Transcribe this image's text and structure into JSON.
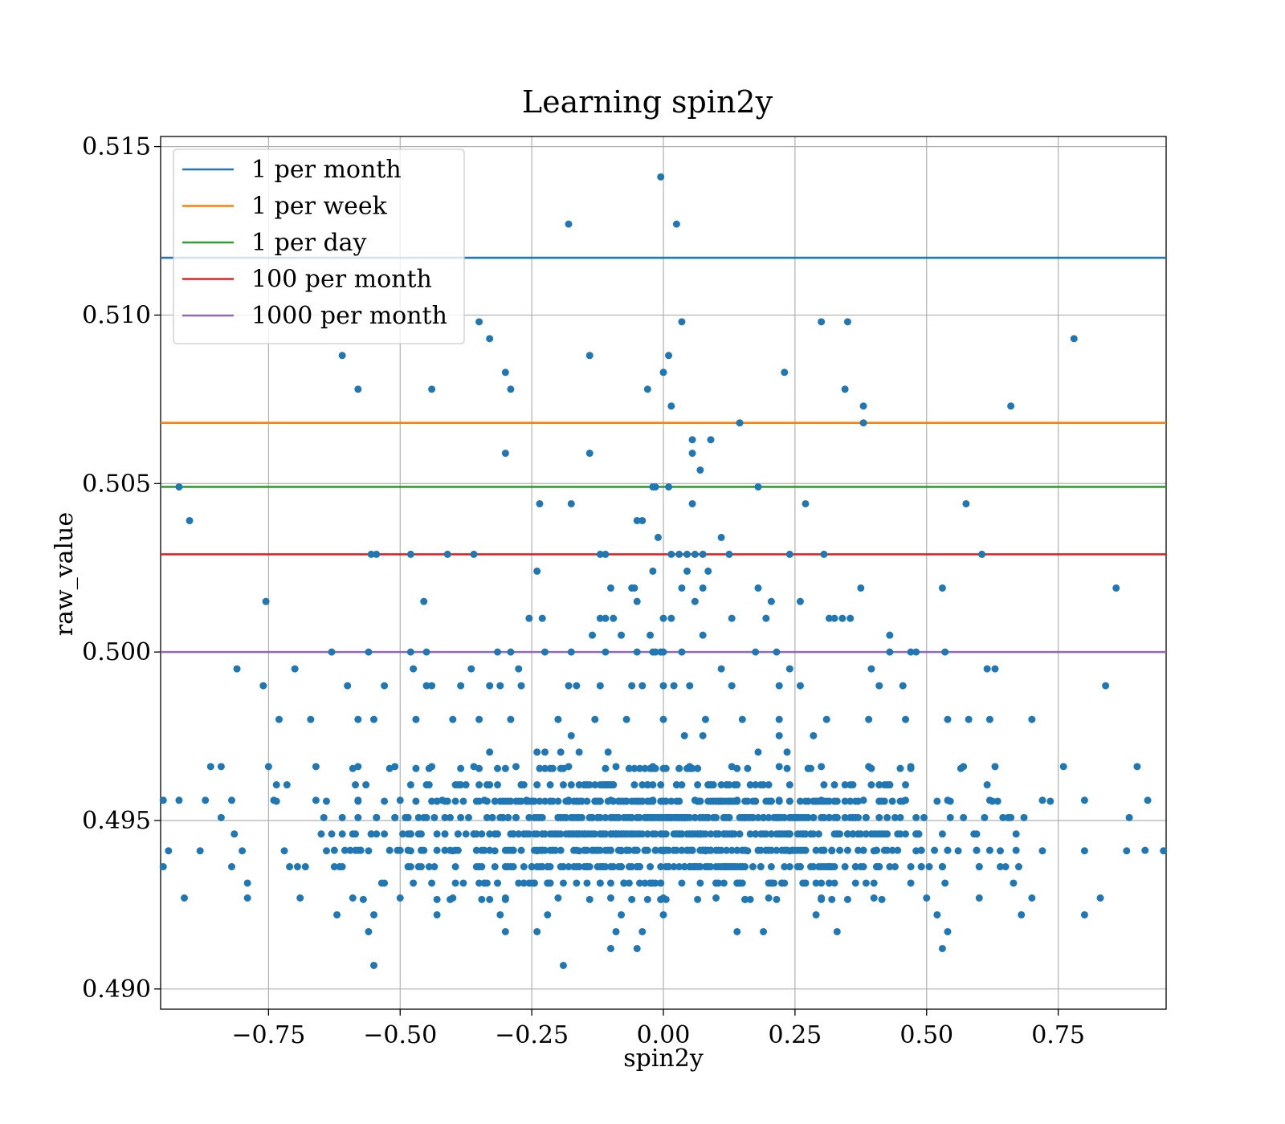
{
  "chart_data": {
    "type": "scatter",
    "title": "Learning spin2y",
    "xlabel": "spin2y",
    "ylabel": "raw_value",
    "xlim": [
      -0.955,
      0.955
    ],
    "ylim": [
      0.4894,
      0.5153
    ],
    "xticks": [
      -0.75,
      -0.5,
      -0.25,
      0.0,
      0.25,
      0.5,
      0.75
    ],
    "xtick_labels": [
      "−0.75",
      "−0.50",
      "−0.25",
      "0.00",
      "0.25",
      "0.50",
      "0.75"
    ],
    "yticks": [
      0.49,
      0.495,
      0.5,
      0.505,
      0.51,
      0.515
    ],
    "ytick_labels": [
      "0.490",
      "0.495",
      "0.500",
      "0.505",
      "0.510",
      "0.515"
    ],
    "grid": true,
    "legend_position": "upper-left",
    "point_color": "#1f77b4",
    "reference_lines": [
      {
        "label": "1 per month",
        "y": 0.5117,
        "color": "#1f77b4"
      },
      {
        "label": "1 per week",
        "y": 0.5068,
        "color": "#ff7f0e"
      },
      {
        "label": "1 per day",
        "y": 0.5049,
        "color": "#2ca02c"
      },
      {
        "label": "100 per month",
        "y": 0.5029,
        "color": "#d62728"
      },
      {
        "label": "1000 per month",
        "y": 0.5,
        "color": "#9467bd"
      }
    ],
    "points": [
      [
        -0.005,
        0.5141
      ],
      [
        -0.18,
        0.5127
      ],
      [
        0.025,
        0.5127
      ],
      [
        -0.35,
        0.5098
      ],
      [
        -0.33,
        0.5093
      ],
      [
        0.035,
        0.5098
      ],
      [
        0.3,
        0.5098
      ],
      [
        0.35,
        0.5098
      ],
      [
        0.78,
        0.5093
      ],
      [
        -0.61,
        0.5088
      ],
      [
        -0.14,
        0.5088
      ],
      [
        0.01,
        0.5088
      ],
      [
        -0.58,
        0.5078
      ],
      [
        -0.44,
        0.5078
      ],
      [
        -0.3,
        0.5083
      ],
      [
        -0.29,
        0.5078
      ],
      [
        -0.03,
        0.5078
      ],
      [
        0.0,
        0.5083
      ],
      [
        0.23,
        0.5083
      ],
      [
        0.345,
        0.5078
      ],
      [
        0.015,
        0.5073
      ],
      [
        0.38,
        0.5073
      ],
      [
        0.66,
        0.5073
      ],
      [
        0.145,
        0.5068
      ],
      [
        0.38,
        0.5068
      ],
      [
        0.055,
        0.5063
      ],
      [
        0.09,
        0.5063
      ],
      [
        -0.3,
        0.5059
      ],
      [
        -0.14,
        0.5059
      ],
      [
        0.055,
        0.5059
      ],
      [
        0.07,
        0.5054
      ],
      [
        -0.92,
        0.5049
      ],
      [
        -0.02,
        0.5049
      ],
      [
        -0.015,
        0.5049
      ],
      [
        0.01,
        0.5049
      ],
      [
        0.18,
        0.5049
      ],
      [
        -0.235,
        0.5044
      ],
      [
        -0.175,
        0.5044
      ],
      [
        0.055,
        0.5044
      ],
      [
        0.27,
        0.5044
      ],
      [
        0.575,
        0.5044
      ],
      [
        -0.9,
        0.5039
      ],
      [
        -0.05,
        0.5039
      ],
      [
        -0.04,
        0.5039
      ],
      [
        0.11,
        0.5034
      ],
      [
        -0.01,
        0.5034
      ],
      [
        -0.555,
        0.5029
      ],
      [
        -0.545,
        0.5029
      ],
      [
        -0.48,
        0.5029
      ],
      [
        -0.41,
        0.5029
      ],
      [
        -0.36,
        0.5029
      ],
      [
        -0.12,
        0.5029
      ],
      [
        -0.11,
        0.5029
      ],
      [
        0.015,
        0.5029
      ],
      [
        0.03,
        0.5029
      ],
      [
        0.045,
        0.5029
      ],
      [
        0.06,
        0.5029
      ],
      [
        0.075,
        0.5029
      ],
      [
        0.125,
        0.5029
      ],
      [
        0.24,
        0.5029
      ],
      [
        0.305,
        0.5029
      ],
      [
        0.605,
        0.5029
      ],
      [
        -0.24,
        0.5024
      ],
      [
        -0.02,
        0.5024
      ],
      [
        0.045,
        0.5024
      ],
      [
        0.085,
        0.5024
      ],
      [
        -0.1,
        0.5019
      ],
      [
        -0.06,
        0.5019
      ],
      [
        -0.055,
        0.5019
      ],
      [
        0.035,
        0.5019
      ],
      [
        0.075,
        0.5019
      ],
      [
        0.18,
        0.5019
      ],
      [
        0.375,
        0.5019
      ],
      [
        0.53,
        0.5019
      ],
      [
        0.86,
        0.5019
      ],
      [
        -0.755,
        0.5015
      ],
      [
        -0.455,
        0.5015
      ],
      [
        -0.05,
        0.5015
      ],
      [
        0.06,
        0.5015
      ],
      [
        0.205,
        0.5015
      ],
      [
        0.26,
        0.5015
      ],
      [
        -0.255,
        0.501
      ],
      [
        -0.23,
        0.501
      ],
      [
        -0.12,
        0.501
      ],
      [
        -0.11,
        0.501
      ],
      [
        -0.095,
        0.501
      ],
      [
        0.0,
        0.501
      ],
      [
        0.015,
        0.501
      ],
      [
        0.13,
        0.501
      ],
      [
        0.195,
        0.501
      ],
      [
        0.315,
        0.501
      ],
      [
        0.325,
        0.501
      ],
      [
        0.34,
        0.501
      ],
      [
        0.355,
        0.501
      ],
      [
        -0.135,
        0.5005
      ],
      [
        -0.08,
        0.5005
      ],
      [
        -0.025,
        0.5005
      ],
      [
        0.075,
        0.5005
      ],
      [
        0.43,
        0.5005
      ],
      [
        -0.63,
        0.5
      ],
      [
        -0.56,
        0.5
      ],
      [
        -0.48,
        0.5
      ],
      [
        -0.45,
        0.5
      ],
      [
        -0.315,
        0.5
      ],
      [
        -0.29,
        0.5
      ],
      [
        -0.225,
        0.5
      ],
      [
        -0.175,
        0.5
      ],
      [
        -0.11,
        0.5
      ],
      [
        -0.05,
        0.5
      ],
      [
        -0.02,
        0.5
      ],
      [
        -0.015,
        0.5
      ],
      [
        -0.005,
        0.5
      ],
      [
        0.0,
        0.5
      ],
      [
        0.035,
        0.5
      ],
      [
        0.175,
        0.5
      ],
      [
        0.215,
        0.5
      ],
      [
        0.43,
        0.5
      ],
      [
        0.47,
        0.5
      ],
      [
        0.48,
        0.5
      ],
      [
        0.535,
        0.5
      ],
      [
        -0.81,
        0.4995
      ],
      [
        -0.7,
        0.4995
      ],
      [
        -0.475,
        0.4995
      ],
      [
        -0.365,
        0.4995
      ],
      [
        -0.275,
        0.4995
      ],
      [
        0.11,
        0.4995
      ],
      [
        0.24,
        0.4995
      ],
      [
        0.395,
        0.4995
      ],
      [
        0.615,
        0.4995
      ],
      [
        0.63,
        0.4995
      ],
      [
        -0.76,
        0.499
      ],
      [
        -0.6,
        0.499
      ],
      [
        -0.53,
        0.499
      ],
      [
        -0.45,
        0.499
      ],
      [
        -0.44,
        0.499
      ],
      [
        -0.385,
        0.499
      ],
      [
        -0.33,
        0.499
      ],
      [
        -0.31,
        0.499
      ],
      [
        -0.27,
        0.499
      ],
      [
        -0.18,
        0.499
      ],
      [
        -0.165,
        0.499
      ],
      [
        -0.12,
        0.499
      ],
      [
        -0.06,
        0.499
      ],
      [
        -0.04,
        0.499
      ],
      [
        0.0,
        0.499
      ],
      [
        0.02,
        0.499
      ],
      [
        0.05,
        0.499
      ],
      [
        0.13,
        0.499
      ],
      [
        0.22,
        0.499
      ],
      [
        0.26,
        0.499
      ],
      [
        0.41,
        0.499
      ],
      [
        0.455,
        0.499
      ],
      [
        0.84,
        0.499
      ],
      [
        -0.73,
        0.498
      ],
      [
        -0.67,
        0.498
      ],
      [
        -0.58,
        0.498
      ],
      [
        -0.55,
        0.498
      ],
      [
        -0.47,
        0.498
      ],
      [
        -0.4,
        0.498
      ],
      [
        -0.35,
        0.498
      ],
      [
        -0.29,
        0.498
      ],
      [
        -0.2,
        0.498
      ],
      [
        -0.13,
        0.498
      ],
      [
        -0.07,
        0.498
      ],
      [
        0.0,
        0.498
      ],
      [
        0.08,
        0.498
      ],
      [
        0.15,
        0.498
      ],
      [
        0.22,
        0.498
      ],
      [
        0.31,
        0.498
      ],
      [
        0.39,
        0.498
      ],
      [
        0.46,
        0.498
      ],
      [
        0.54,
        0.498
      ],
      [
        0.58,
        0.498
      ],
      [
        0.62,
        0.498
      ],
      [
        0.7,
        0.498
      ],
      [
        -0.86,
        0.4966
      ],
      [
        -0.84,
        0.4966
      ],
      [
        -0.75,
        0.4966
      ],
      [
        -0.66,
        0.4966
      ],
      [
        -0.58,
        0.4966
      ],
      [
        -0.51,
        0.4966
      ],
      [
        -0.44,
        0.4966
      ],
      [
        -0.36,
        0.4966
      ],
      [
        -0.28,
        0.4966
      ],
      [
        -0.18,
        0.4966
      ],
      [
        -0.09,
        0.4966
      ],
      [
        -0.02,
        0.4966
      ],
      [
        0.05,
        0.4966
      ],
      [
        0.13,
        0.4966
      ],
      [
        0.22,
        0.4966
      ],
      [
        0.3,
        0.4966
      ],
      [
        0.39,
        0.4966
      ],
      [
        0.47,
        0.4966
      ],
      [
        0.57,
        0.4966
      ],
      [
        0.63,
        0.4966
      ],
      [
        0.76,
        0.4966
      ],
      [
        0.9,
        0.4966
      ],
      [
        -0.95,
        0.4956
      ],
      [
        -0.92,
        0.4956
      ],
      [
        -0.87,
        0.4956
      ],
      [
        -0.82,
        0.4956
      ],
      [
        -0.74,
        0.4956
      ],
      [
        -0.66,
        0.4956
      ],
      [
        -0.58,
        0.4956
      ],
      [
        -0.5,
        0.4956
      ],
      [
        -0.42,
        0.4956
      ],
      [
        -0.34,
        0.4956
      ],
      [
        -0.26,
        0.4956
      ],
      [
        -0.18,
        0.4956
      ],
      [
        -0.1,
        0.4956
      ],
      [
        -0.02,
        0.4956
      ],
      [
        0.06,
        0.4956
      ],
      [
        0.14,
        0.4956
      ],
      [
        0.22,
        0.4956
      ],
      [
        0.3,
        0.4956
      ],
      [
        0.38,
        0.4956
      ],
      [
        0.46,
        0.4956
      ],
      [
        0.54,
        0.4956
      ],
      [
        0.62,
        0.4956
      ],
      [
        0.72,
        0.4956
      ],
      [
        0.8,
        0.4956
      ],
      [
        0.92,
        0.4956
      ],
      [
        -0.94,
        0.4941
      ],
      [
        -0.88,
        0.4941
      ],
      [
        -0.8,
        0.4941
      ],
      [
        -0.72,
        0.4941
      ],
      [
        -0.64,
        0.4941
      ],
      [
        -0.56,
        0.4941
      ],
      [
        -0.48,
        0.4941
      ],
      [
        -0.4,
        0.4941
      ],
      [
        -0.32,
        0.4941
      ],
      [
        -0.24,
        0.4941
      ],
      [
        -0.16,
        0.4941
      ],
      [
        -0.08,
        0.4941
      ],
      [
        0.0,
        0.4941
      ],
      [
        0.08,
        0.4941
      ],
      [
        0.16,
        0.4941
      ],
      [
        0.24,
        0.4941
      ],
      [
        0.32,
        0.4941
      ],
      [
        0.4,
        0.4941
      ],
      [
        0.48,
        0.4941
      ],
      [
        0.56,
        0.4941
      ],
      [
        0.64,
        0.4941
      ],
      [
        0.72,
        0.4941
      ],
      [
        0.8,
        0.4941
      ],
      [
        0.88,
        0.4941
      ],
      [
        0.95,
        0.4941
      ],
      [
        -0.91,
        0.4927
      ],
      [
        -0.79,
        0.4927
      ],
      [
        -0.69,
        0.4927
      ],
      [
        -0.59,
        0.4927
      ],
      [
        -0.5,
        0.4927
      ],
      [
        -0.4,
        0.4927
      ],
      [
        -0.3,
        0.4927
      ],
      [
        -0.2,
        0.4927
      ],
      [
        -0.1,
        0.4927
      ],
      [
        0.0,
        0.4927
      ],
      [
        0.1,
        0.4927
      ],
      [
        0.2,
        0.4927
      ],
      [
        0.3,
        0.4927
      ],
      [
        0.4,
        0.4927
      ],
      [
        0.5,
        0.4927
      ],
      [
        0.6,
        0.4927
      ],
      [
        0.7,
        0.4927
      ],
      [
        0.83,
        0.4927
      ],
      [
        -0.62,
        0.4922
      ],
      [
        -0.55,
        0.4922
      ],
      [
        -0.43,
        0.4922
      ],
      [
        -0.31,
        0.4922
      ],
      [
        -0.22,
        0.4922
      ],
      [
        -0.08,
        0.4922
      ],
      [
        0.0,
        0.4922
      ],
      [
        0.29,
        0.4922
      ],
      [
        0.52,
        0.4922
      ],
      [
        0.68,
        0.4922
      ],
      [
        0.8,
        0.4922
      ],
      [
        -0.56,
        0.4917
      ],
      [
        -0.3,
        0.4917
      ],
      [
        -0.24,
        0.4917
      ],
      [
        -0.09,
        0.4917
      ],
      [
        -0.04,
        0.4917
      ],
      [
        0.14,
        0.4917
      ],
      [
        0.19,
        0.4917
      ],
      [
        0.33,
        0.4917
      ],
      [
        0.54,
        0.4917
      ],
      [
        -0.1,
        0.4912
      ],
      [
        -0.05,
        0.4912
      ],
      [
        0.53,
        0.4912
      ],
      [
        -0.55,
        0.4907
      ],
      [
        -0.19,
        0.4907
      ]
    ],
    "dense_cluster": {
      "x_min": -0.955,
      "x_max": 0.955,
      "y_min": 0.4927,
      "y_max": 0.4985,
      "y_center": 0.4946,
      "sigma_x": 0.28,
      "count": 1150
    }
  }
}
